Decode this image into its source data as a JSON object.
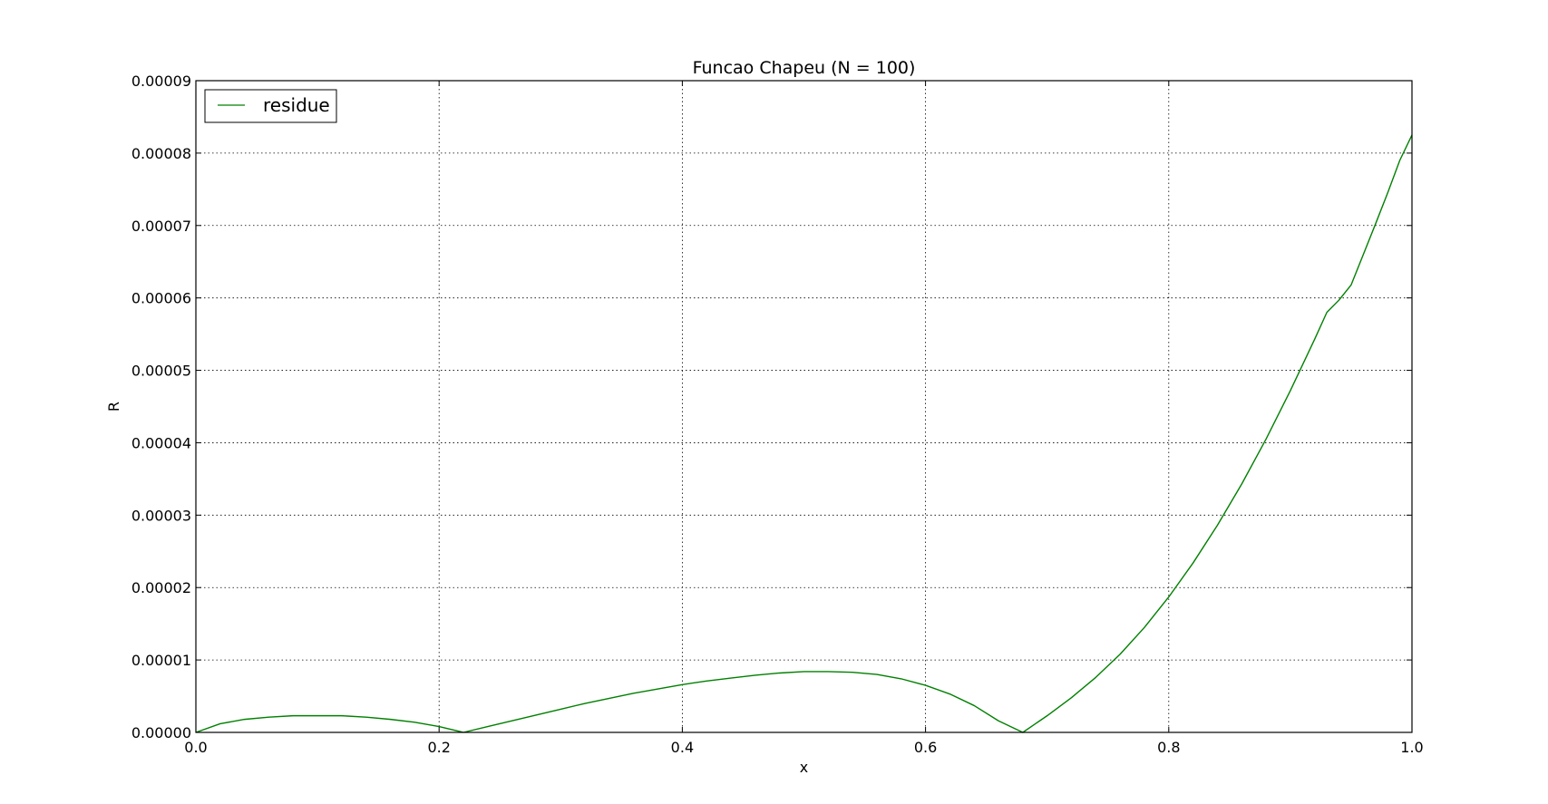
{
  "chart_data": {
    "type": "line",
    "title": "Funcao Chapeu (N = 100)",
    "xlabel": "x",
    "ylabel": "R",
    "xlim": [
      0.0,
      1.0
    ],
    "ylim": [
      0.0,
      9e-05
    ],
    "x_ticks": [
      {
        "value": 0.0,
        "label": "0.0"
      },
      {
        "value": 0.2,
        "label": "0.2"
      },
      {
        "value": 0.4,
        "label": "0.4"
      },
      {
        "value": 0.6,
        "label": "0.6"
      },
      {
        "value": 0.8,
        "label": "0.8"
      },
      {
        "value": 1.0,
        "label": "1.0"
      }
    ],
    "y_ticks": [
      {
        "value": 0.0,
        "label": "0.00000"
      },
      {
        "value": 1e-05,
        "label": "0.00001"
      },
      {
        "value": 2e-05,
        "label": "0.00002"
      },
      {
        "value": 3e-05,
        "label": "0.00003"
      },
      {
        "value": 4e-05,
        "label": "0.00004"
      },
      {
        "value": 5e-05,
        "label": "0.00005"
      },
      {
        "value": 6e-05,
        "label": "0.00006"
      },
      {
        "value": 7e-05,
        "label": "0.00007"
      },
      {
        "value": 8e-05,
        "label": "0.00008"
      },
      {
        "value": 9e-05,
        "label": "0.00009"
      }
    ],
    "grid": true,
    "legend": {
      "placement": "top-left",
      "entries": [
        "residue"
      ]
    },
    "series": [
      {
        "name": "residue",
        "color": "#008000",
        "x": [
          0.0,
          0.02,
          0.04,
          0.06,
          0.08,
          0.1,
          0.12,
          0.14,
          0.16,
          0.18,
          0.2,
          0.22,
          0.24,
          0.26,
          0.28,
          0.3,
          0.32,
          0.34,
          0.36,
          0.38,
          0.4,
          0.42,
          0.44,
          0.46,
          0.48,
          0.5,
          0.52,
          0.54,
          0.56,
          0.58,
          0.6,
          0.62,
          0.64,
          0.66,
          0.68,
          0.7,
          0.72,
          0.74,
          0.76,
          0.78,
          0.8,
          0.82,
          0.84,
          0.86,
          0.88,
          0.9,
          0.92,
          0.93,
          0.94,
          0.95,
          0.96,
          0.97,
          0.98,
          0.99,
          1.0
        ],
        "y": [
          0.0,
          1.2e-06,
          1.8e-06,
          2.1e-06,
          2.3e-06,
          2.3e-06,
          2.3e-06,
          2.1e-06,
          1.8e-06,
          1.4e-06,
          8e-07,
          0.0,
          8e-07,
          1.6e-06,
          2.4e-06,
          3.2e-06,
          4e-06,
          4.7e-06,
          5.4e-06,
          6e-06,
          6.6e-06,
          7.1e-06,
          7.5e-06,
          7.9e-06,
          8.2e-06,
          8.4e-06,
          8.4e-06,
          8.3e-06,
          8e-06,
          7.4e-06,
          6.5e-06,
          5.3e-06,
          3.7e-06,
          1.6e-06,
          0.0,
          2.3e-06,
          4.8e-06,
          7.6e-06,
          1.08e-05,
          1.45e-05,
          1.87e-05,
          2.34e-05,
          2.86e-05,
          3.43e-05,
          4.05e-05,
          4.72e-05,
          5.43e-05,
          5.8e-05,
          5.97e-05,
          6.18e-05,
          6.6e-05,
          7.02e-05,
          7.45e-05,
          7.9e-05,
          8.25e-05
        ]
      }
    ]
  }
}
